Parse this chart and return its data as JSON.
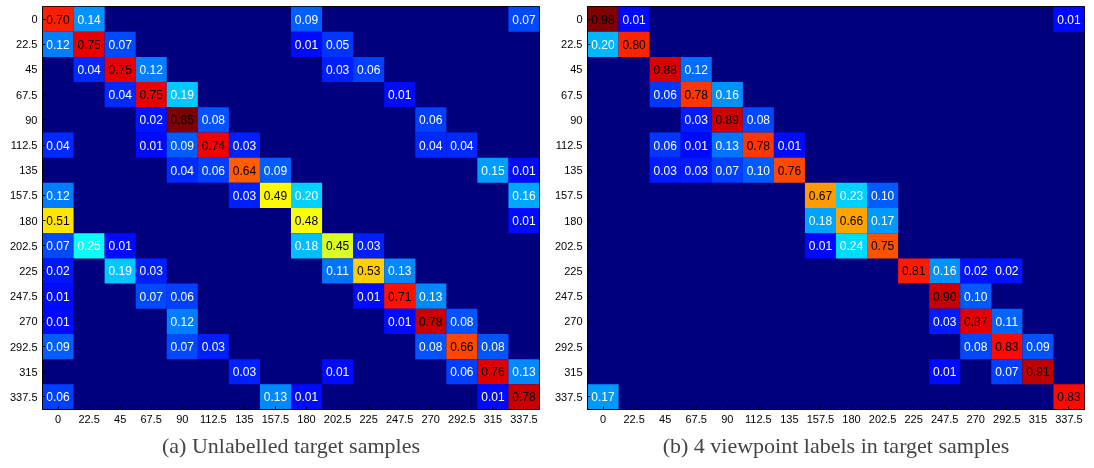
{
  "chart_data": [
    {
      "type": "heatmap",
      "title": "(a) Unlabelled target samples",
      "data_labels": true,
      "categories": [
        "0",
        "22.5",
        "45",
        "67.5",
        "90",
        "112.5",
        "135",
        "157.5",
        "180",
        "202.5",
        "225",
        "247.5",
        "270",
        "292.5",
        "315",
        "337.5"
      ],
      "y_categories": [
        "0",
        "22.5",
        "45",
        "67.5",
        "90",
        "112.5",
        "135",
        "157.5",
        "180",
        "202.5",
        "225",
        "247.5",
        "270",
        "292.5",
        "315",
        "337.5"
      ],
      "cells": [
        [
          0.7,
          0.14,
          null,
          null,
          null,
          null,
          null,
          null,
          0.09,
          null,
          null,
          null,
          null,
          null,
          null,
          0.07
        ],
        [
          0.12,
          0.75,
          0.07,
          null,
          null,
          null,
          null,
          null,
          0.01,
          0.05,
          null,
          null,
          null,
          null,
          null,
          null
        ],
        [
          null,
          0.04,
          0.75,
          0.12,
          null,
          null,
          null,
          null,
          null,
          0.03,
          0.06,
          null,
          null,
          null,
          null,
          null
        ],
        [
          null,
          null,
          0.04,
          0.75,
          0.19,
          null,
          null,
          null,
          null,
          null,
          null,
          0.01,
          null,
          null,
          null,
          null
        ],
        [
          null,
          null,
          null,
          0.02,
          0.85,
          0.08,
          null,
          null,
          null,
          null,
          null,
          null,
          0.06,
          null,
          null,
          null
        ],
        [
          0.04,
          null,
          null,
          0.01,
          0.09,
          0.74,
          0.03,
          null,
          null,
          null,
          null,
          null,
          0.04,
          0.04,
          null,
          null
        ],
        [
          null,
          null,
          null,
          null,
          0.04,
          0.06,
          0.64,
          0.09,
          null,
          null,
          null,
          null,
          null,
          null,
          0.15,
          0.01
        ],
        [
          0.12,
          null,
          null,
          null,
          null,
          null,
          0.03,
          0.49,
          0.2,
          null,
          null,
          null,
          null,
          null,
          null,
          0.16
        ],
        [
          0.51,
          null,
          null,
          null,
          null,
          null,
          null,
          null,
          0.48,
          null,
          null,
          null,
          null,
          null,
          null,
          0.01
        ],
        [
          0.07,
          0.25,
          0.01,
          null,
          null,
          null,
          null,
          null,
          0.18,
          0.45,
          0.03,
          null,
          null,
          null,
          null,
          null
        ],
        [
          0.02,
          null,
          0.19,
          0.03,
          null,
          null,
          null,
          null,
          null,
          0.11,
          0.53,
          0.13,
          null,
          null,
          null,
          null
        ],
        [
          0.01,
          null,
          null,
          0.07,
          0.06,
          null,
          null,
          null,
          null,
          null,
          0.01,
          0.71,
          0.13,
          null,
          null,
          null
        ],
        [
          0.01,
          null,
          null,
          null,
          0.12,
          null,
          null,
          null,
          null,
          null,
          null,
          0.01,
          0.78,
          0.08,
          null,
          null
        ],
        [
          0.09,
          null,
          null,
          null,
          0.07,
          0.03,
          null,
          null,
          null,
          null,
          null,
          null,
          0.08,
          0.66,
          0.08,
          null
        ],
        [
          null,
          null,
          null,
          null,
          null,
          null,
          0.03,
          null,
          null,
          0.01,
          null,
          null,
          null,
          0.06,
          0.76,
          0.13
        ],
        [
          0.06,
          null,
          null,
          null,
          null,
          null,
          null,
          0.13,
          0.01,
          null,
          null,
          null,
          null,
          null,
          0.01,
          0.78
        ]
      ],
      "cell_labels": [
        [
          "0.70",
          "0.14",
          null,
          null,
          null,
          null,
          null,
          null,
          "0.09",
          null,
          null,
          null,
          null,
          null,
          null,
          "0.07"
        ],
        [
          "0.12",
          "0.75",
          "0.07",
          null,
          null,
          null,
          null,
          null,
          "0.01",
          "0.05",
          null,
          null,
          null,
          null,
          null,
          null
        ],
        [
          null,
          "0.04",
          "0.75",
          "0.12",
          null,
          null,
          null,
          null,
          null,
          "0.03",
          "0.06",
          null,
          null,
          null,
          null,
          null
        ],
        [
          null,
          null,
          "0.04",
          "0.75",
          "0.19",
          null,
          null,
          null,
          null,
          null,
          null,
          "0.01",
          null,
          null,
          null,
          null
        ],
        [
          null,
          null,
          null,
          "0.02",
          "0.85",
          "0.08",
          null,
          null,
          null,
          null,
          null,
          null,
          "0.06",
          null,
          null,
          null
        ],
        [
          "0.04",
          null,
          null,
          "0.01",
          "0.09",
          "0.74",
          "0.03",
          null,
          null,
          null,
          null,
          null,
          "0.04",
          "0.04",
          null,
          null
        ],
        [
          null,
          null,
          null,
          null,
          "0.04",
          "0.06",
          "0.64",
          "0.09",
          null,
          null,
          null,
          null,
          null,
          null,
          "0.15",
          "0.01"
        ],
        [
          "0.12",
          null,
          null,
          null,
          null,
          null,
          "0.03",
          "0.49",
          "0.20",
          null,
          null,
          null,
          null,
          null,
          null,
          "0.16"
        ],
        [
          "0.51",
          null,
          null,
          null,
          null,
          null,
          null,
          null,
          "0.48",
          null,
          null,
          null,
          null,
          null,
          null,
          "0.01"
        ],
        [
          "0.07",
          "0.25",
          "0.01",
          null,
          null,
          null,
          null,
          null,
          "0.18",
          "0.45",
          "0.03",
          null,
          null,
          null,
          null,
          null
        ],
        [
          "0.02",
          null,
          "0.19",
          "0.03",
          null,
          null,
          null,
          null,
          null,
          "0.11",
          "0.53",
          "0.13",
          null,
          null,
          null,
          null
        ],
        [
          "0.01",
          null,
          null,
          "0.07",
          "0.06",
          null,
          null,
          null,
          null,
          null,
          "0.01",
          "0.71",
          "0.13",
          null,
          null,
          null
        ],
        [
          "0.01",
          null,
          null,
          null,
          "0.12",
          null,
          null,
          null,
          null,
          null,
          null,
          "0.01",
          "0.78",
          "0.08",
          null,
          null
        ],
        [
          "0.09",
          null,
          null,
          null,
          "0.07",
          "0.03",
          null,
          null,
          null,
          null,
          null,
          null,
          "0.08",
          "0.66",
          "0.08",
          null
        ],
        [
          null,
          null,
          null,
          null,
          null,
          null,
          "0.03",
          null,
          null,
          "0.01",
          null,
          null,
          null,
          "0.06",
          "0.76",
          "0.13"
        ],
        [
          "0.06",
          null,
          null,
          null,
          null,
          null,
          null,
          "0.13",
          "0.01",
          null,
          null,
          null,
          null,
          null,
          "0.01",
          "0.78"
        ]
      ]
    },
    {
      "type": "heatmap",
      "title": "(b) 4 viewpoint labels in target samples",
      "data_labels": true,
      "categories": [
        "0",
        "22.5",
        "45",
        "67.5",
        "90",
        "112.5",
        "135",
        "157.5",
        "180",
        "202.5",
        "225",
        "247.5",
        "270",
        "292.5",
        "315",
        "337.5"
      ],
      "y_categories": [
        "0",
        "22.5",
        "45",
        "67.5",
        "90",
        "112.5",
        "135",
        "157.5",
        "180",
        "202.5",
        "225",
        "247.5",
        "270",
        "292.5",
        "315",
        "337.5"
      ],
      "cells": [
        [
          0.98,
          0.01,
          null,
          null,
          null,
          null,
          null,
          null,
          null,
          null,
          null,
          null,
          null,
          null,
          null,
          0.01
        ],
        [
          0.2,
          0.8,
          null,
          null,
          null,
          null,
          null,
          null,
          null,
          null,
          null,
          null,
          null,
          null,
          null,
          null
        ],
        [
          null,
          null,
          0.88,
          0.12,
          null,
          null,
          null,
          null,
          null,
          null,
          null,
          null,
          null,
          null,
          null,
          null
        ],
        [
          null,
          null,
          0.06,
          0.78,
          0.16,
          null,
          null,
          null,
          null,
          null,
          null,
          null,
          null,
          null,
          null,
          null
        ],
        [
          null,
          null,
          null,
          0.03,
          0.89,
          0.08,
          null,
          null,
          null,
          null,
          null,
          null,
          null,
          null,
          null,
          null
        ],
        [
          null,
          null,
          0.06,
          0.01,
          0.13,
          0.78,
          0.01,
          null,
          null,
          null,
          null,
          null,
          null,
          null,
          null,
          null
        ],
        [
          null,
          null,
          0.03,
          0.03,
          0.07,
          0.1,
          0.76,
          null,
          null,
          null,
          null,
          null,
          null,
          null,
          null,
          null
        ],
        [
          null,
          null,
          null,
          null,
          null,
          null,
          null,
          0.67,
          0.23,
          0.1,
          null,
          null,
          null,
          null,
          null,
          null
        ],
        [
          null,
          null,
          null,
          null,
          null,
          null,
          null,
          0.18,
          0.66,
          0.17,
          null,
          null,
          null,
          null,
          null,
          null
        ],
        [
          null,
          null,
          null,
          null,
          null,
          null,
          null,
          0.01,
          0.24,
          0.75,
          null,
          null,
          null,
          null,
          null,
          null
        ],
        [
          null,
          null,
          null,
          null,
          null,
          null,
          null,
          null,
          null,
          null,
          0.81,
          0.16,
          0.02,
          0.02,
          null,
          null
        ],
        [
          null,
          null,
          null,
          null,
          null,
          null,
          null,
          null,
          null,
          null,
          null,
          0.9,
          0.1,
          null,
          null,
          null
        ],
        [
          null,
          null,
          null,
          null,
          null,
          null,
          null,
          null,
          null,
          null,
          null,
          0.03,
          0.87,
          0.11,
          null,
          null
        ],
        [
          null,
          null,
          null,
          null,
          null,
          null,
          null,
          null,
          null,
          null,
          null,
          null,
          0.08,
          0.83,
          0.09,
          null
        ],
        [
          null,
          null,
          null,
          null,
          null,
          null,
          null,
          null,
          null,
          null,
          null,
          0.01,
          null,
          0.07,
          0.91,
          null
        ],
        [
          0.17,
          null,
          null,
          null,
          null,
          null,
          null,
          null,
          null,
          null,
          null,
          null,
          null,
          null,
          null,
          0.83
        ]
      ],
      "cell_labels": [
        [
          "0.98",
          "0.01",
          null,
          null,
          null,
          null,
          null,
          null,
          null,
          null,
          null,
          null,
          null,
          null,
          null,
          "0.01"
        ],
        [
          "0.20",
          "0.80",
          null,
          null,
          null,
          null,
          null,
          null,
          null,
          null,
          null,
          null,
          null,
          null,
          null,
          null
        ],
        [
          null,
          null,
          "0.88",
          "0.12",
          null,
          null,
          null,
          null,
          null,
          null,
          null,
          null,
          null,
          null,
          null,
          null
        ],
        [
          null,
          null,
          "0.06",
          "0.78",
          "0.16",
          null,
          null,
          null,
          null,
          null,
          null,
          null,
          null,
          null,
          null,
          null
        ],
        [
          null,
          null,
          null,
          "0.03",
          "0.89",
          "0.08",
          null,
          null,
          null,
          null,
          null,
          null,
          null,
          null,
          null,
          null
        ],
        [
          null,
          null,
          "0.06",
          "0.01",
          "0.13",
          "0.78",
          "0.01",
          null,
          null,
          null,
          null,
          null,
          null,
          null,
          null,
          null
        ],
        [
          null,
          null,
          "0.03",
          "0.03",
          "0.07",
          "0.10",
          "0.76",
          null,
          null,
          null,
          null,
          null,
          null,
          null,
          null,
          null
        ],
        [
          null,
          null,
          null,
          null,
          null,
          null,
          null,
          "0.67",
          "0.23",
          "0.10",
          null,
          null,
          null,
          null,
          null,
          null
        ],
        [
          null,
          null,
          null,
          null,
          null,
          null,
          null,
          "0.18",
          "0.66",
          "0.17",
          null,
          null,
          null,
          null,
          null,
          null
        ],
        [
          null,
          null,
          null,
          null,
          null,
          null,
          null,
          "0.01",
          "0.24",
          "0.75",
          null,
          null,
          null,
          null,
          null,
          null
        ],
        [
          null,
          null,
          null,
          null,
          null,
          null,
          null,
          null,
          null,
          null,
          "0.81",
          "0.16",
          "0.02",
          "0.02",
          null,
          null
        ],
        [
          null,
          null,
          null,
          null,
          null,
          null,
          null,
          null,
          null,
          null,
          null,
          "0.90",
          "0.10",
          null,
          null,
          null
        ],
        [
          null,
          null,
          null,
          null,
          null,
          null,
          null,
          null,
          null,
          null,
          null,
          "0.03",
          "0.87",
          "0.11",
          null,
          null
        ],
        [
          null,
          null,
          null,
          null,
          null,
          null,
          null,
          null,
          null,
          null,
          null,
          null,
          "0.08",
          "0.83",
          "0.09",
          null
        ],
        [
          null,
          null,
          null,
          null,
          null,
          null,
          null,
          null,
          null,
          null,
          null,
          "0.01",
          null,
          "0.07",
          "0.91",
          null
        ],
        [
          "0.17",
          null,
          null,
          null,
          null,
          null,
          null,
          null,
          null,
          null,
          null,
          null,
          null,
          null,
          null,
          "0.83"
        ]
      ]
    }
  ]
}
